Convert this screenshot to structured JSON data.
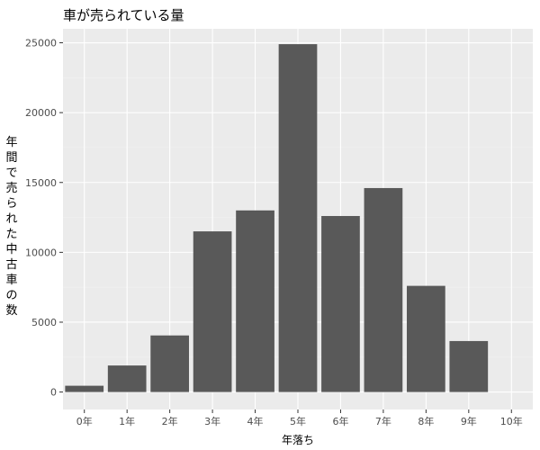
{
  "chart_data": {
    "type": "bar",
    "title": "車が売られている量",
    "xlabel": "年落ち",
    "ylabel": "年間で売られた中古車の数",
    "categories": [
      "0年",
      "1年",
      "2年",
      "3年",
      "4年",
      "5年",
      "6年",
      "7年",
      "8年",
      "9年",
      "10年"
    ],
    "values": [
      450,
      1900,
      4050,
      11500,
      13000,
      24900,
      12600,
      14600,
      7600,
      3650,
      0
    ],
    "ylim": [
      -1250,
      26000
    ],
    "yticks": [
      0,
      5000,
      10000,
      15000,
      20000,
      25000
    ],
    "grid": true,
    "colors": {
      "bar": "#595959",
      "panel": "#ebebeb",
      "grid_major": "#ffffff",
      "grid_minor": "#f2f2f2"
    }
  }
}
